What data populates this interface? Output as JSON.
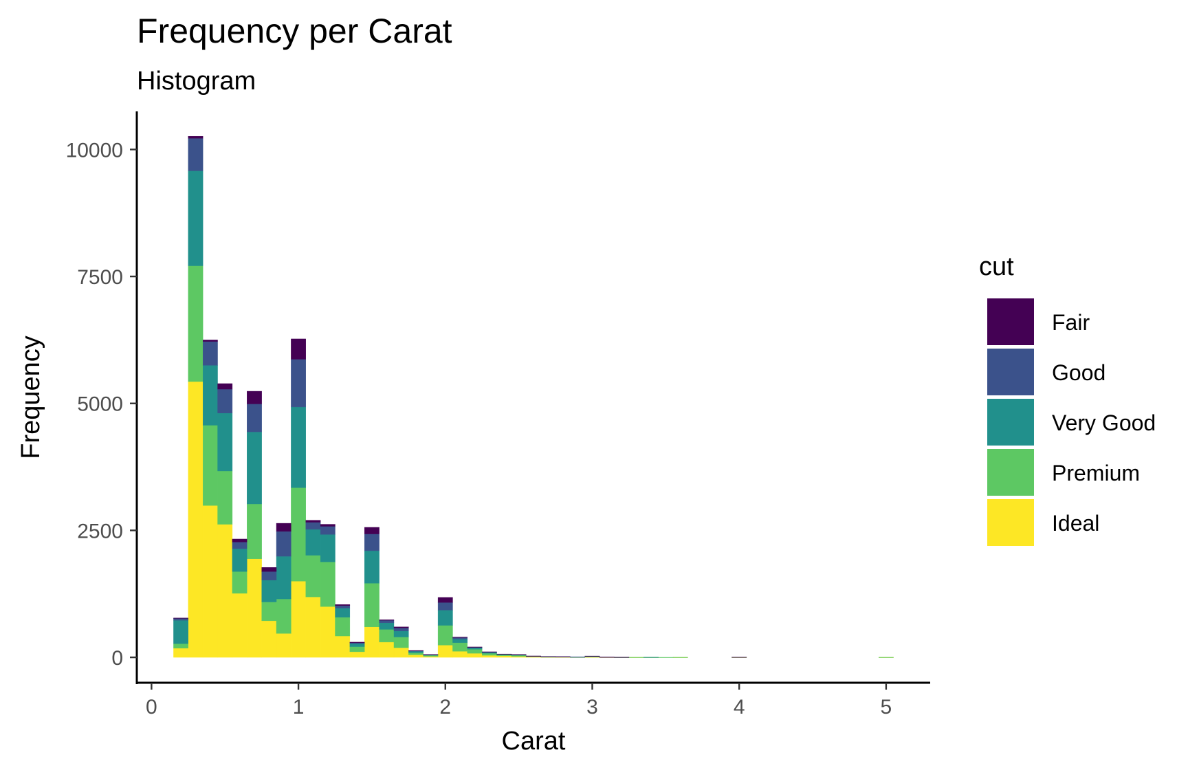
{
  "chart_data": {
    "type": "bar",
    "stacked": true,
    "title": "Frequency per Carat",
    "subtitle": "Histogram",
    "xlabel": "Carat",
    "ylabel": "Frequency",
    "xlim": [
      -0.1,
      5.3
    ],
    "ylim": [
      -500,
      10750
    ],
    "x_ticks": [
      "0",
      "1",
      "2",
      "3",
      "4",
      "5"
    ],
    "x_tick_values": [
      0,
      1,
      2,
      3,
      4,
      5
    ],
    "y_ticks": [
      "0",
      "2500",
      "5000",
      "7500",
      "10000"
    ],
    "y_tick_values": [
      0,
      2500,
      5000,
      7500,
      10000
    ],
    "bin_width": 0.1,
    "grid": false,
    "legend": {
      "title": "cut",
      "placement": "right"
    },
    "x": [
      0.2,
      0.3,
      0.4,
      0.5,
      0.6,
      0.7,
      0.8,
      0.9,
      1.0,
      1.1,
      1.2,
      1.3,
      1.4,
      1.5,
      1.6,
      1.7,
      1.8,
      1.9,
      2.0,
      2.1,
      2.2,
      2.3,
      2.4,
      2.5,
      2.6,
      2.7,
      2.8,
      2.9,
      3.0,
      3.1,
      3.2,
      3.3,
      3.4,
      3.5,
      3.6,
      3.7,
      3.8,
      3.9,
      4.0,
      4.1,
      4.2,
      4.3,
      4.4,
      4.5,
      4.6,
      4.7,
      4.8,
      4.9,
      5.0
    ],
    "series": [
      {
        "name": "Ideal",
        "color": "#FDE725",
        "values": [
          180,
          5430,
          2990,
          2620,
          1260,
          1940,
          720,
          470,
          1500,
          1190,
          1000,
          420,
          110,
          600,
          300,
          190,
          50,
          20,
          240,
          120,
          80,
          40,
          30,
          20,
          10,
          5,
          5,
          3,
          6,
          2,
          1,
          1,
          1,
          0,
          1,
          0,
          0,
          0,
          1,
          0,
          0,
          0,
          0,
          0,
          0,
          0,
          0,
          0,
          1
        ]
      },
      {
        "name": "Premium",
        "color": "#5DC863",
        "values": [
          90,
          2280,
          1580,
          1050,
          430,
          1080,
          370,
          680,
          1840,
          820,
          880,
          370,
          100,
          860,
          250,
          210,
          40,
          20,
          390,
          170,
          80,
          40,
          20,
          20,
          10,
          5,
          5,
          3,
          10,
          2,
          1,
          1,
          1,
          1,
          1,
          0,
          0,
          0,
          2,
          0,
          0,
          0,
          0,
          0,
          0,
          0,
          0,
          0,
          1
        ]
      },
      {
        "name": "Very Good",
        "color": "#21908C",
        "values": [
          460,
          1870,
          1180,
          1140,
          450,
          1420,
          430,
          840,
          1590,
          510,
          540,
          180,
          60,
          640,
          130,
          120,
          30,
          10,
          300,
          70,
          30,
          20,
          10,
          10,
          5,
          5,
          3,
          2,
          6,
          1,
          1,
          0,
          1,
          0,
          0,
          0,
          0,
          0,
          1,
          0,
          0,
          0,
          0,
          0,
          0,
          0,
          0,
          0,
          0
        ]
      },
      {
        "name": "Good",
        "color": "#3B528B",
        "values": [
          40,
          640,
          470,
          470,
          130,
          550,
          170,
          490,
          940,
          140,
          160,
          50,
          20,
          330,
          50,
          60,
          10,
          5,
          150,
          30,
          10,
          5,
          5,
          5,
          2,
          2,
          1,
          1,
          3,
          1,
          0,
          0,
          0,
          0,
          0,
          0,
          0,
          0,
          0,
          0,
          0,
          0,
          0,
          0,
          0,
          0,
          0,
          0,
          0
        ]
      },
      {
        "name": "Fair",
        "color": "#440154",
        "values": [
          5,
          40,
          30,
          110,
          60,
          250,
          80,
          160,
          400,
          40,
          40,
          20,
          10,
          130,
          10,
          20,
          5,
          2,
          100,
          10,
          5,
          5,
          2,
          2,
          1,
          1,
          1,
          0,
          2,
          1,
          1,
          0,
          0,
          0,
          0,
          0,
          0,
          0,
          1,
          0,
          0,
          0,
          0,
          0,
          0,
          0,
          0,
          0,
          0
        ]
      }
    ]
  }
}
